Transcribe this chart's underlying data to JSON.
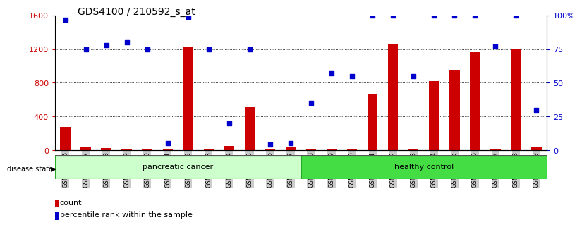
{
  "title": "GDS4100 / 210592_s_at",
  "samples": [
    "GSM356796",
    "GSM356797",
    "GSM356798",
    "GSM356799",
    "GSM356800",
    "GSM356801",
    "GSM356802",
    "GSM356803",
    "GSM356804",
    "GSM356805",
    "GSM356806",
    "GSM356807",
    "GSM356808",
    "GSM356809",
    "GSM356810",
    "GSM356811",
    "GSM356812",
    "GSM356813",
    "GSM356814",
    "GSM356815",
    "GSM356816",
    "GSM356817",
    "GSM356818",
    "GSM356819"
  ],
  "counts": [
    280,
    30,
    25,
    20,
    20,
    20,
    1230,
    20,
    50,
    510,
    20,
    30,
    20,
    20,
    20,
    660,
    1260,
    20,
    820,
    950,
    1160,
    20,
    1200,
    30
  ],
  "percentiles": [
    97,
    75,
    78,
    80,
    75,
    5,
    99,
    75,
    20,
    75,
    4,
    5,
    35,
    57,
    55,
    100,
    100,
    55,
    100,
    100,
    100,
    77,
    100,
    30
  ],
  "pancreatic_count": 12,
  "healthy_count": 12,
  "ylim_left": [
    0,
    1600
  ],
  "ylim_right": [
    0,
    100
  ],
  "yticks_left": [
    0,
    400,
    800,
    1200,
    1600
  ],
  "ytick_labels_left": [
    "0",
    "400",
    "800",
    "1200",
    "1600"
  ],
  "yticks_right": [
    0,
    25,
    50,
    75,
    100
  ],
  "ytick_labels_right": [
    "0",
    "25",
    "50",
    "75",
    "100%"
  ],
  "bar_color": "#cc0000",
  "dot_color": "#0000cc",
  "panc_color": "#ccffcc",
  "healthy_color": "#44dd44",
  "band_edge_color": "#22aa22",
  "band_top_color": "#555555",
  "legend_count_label": "count",
  "legend_pct_label": "percentile rank within the sample",
  "disease_state_label": "disease state",
  "pancreatic_label": "pancreatic cancer",
  "healthy_label": "healthy control",
  "background_color": "#ffffff",
  "tick_bg_color": "#cccccc",
  "title_fontsize": 10,
  "axis_fontsize": 8,
  "label_fontsize": 7,
  "bar_width": 0.5
}
